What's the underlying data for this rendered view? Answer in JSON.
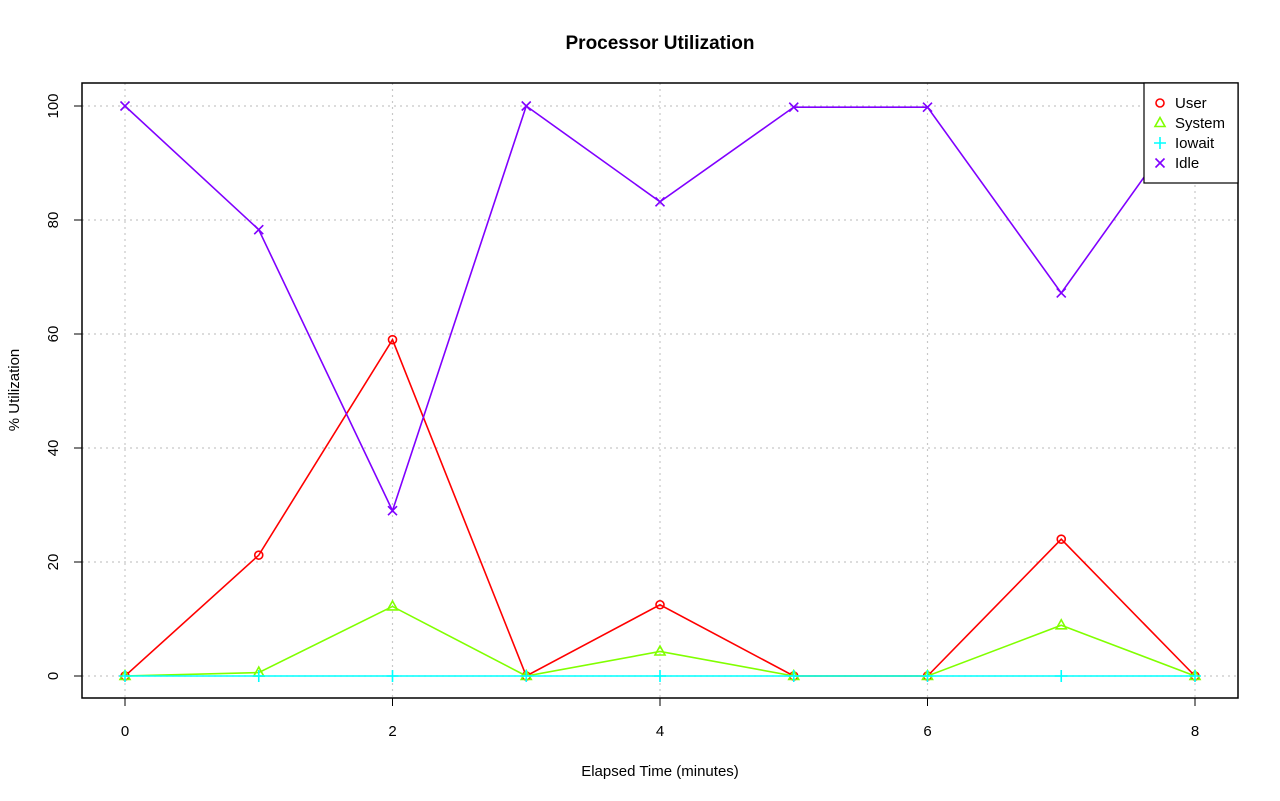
{
  "chart_data": {
    "type": "line",
    "title": "Processor Utilization",
    "xlabel": "Elapsed Time (minutes)",
    "ylabel": "% Utilization",
    "x": [
      0,
      1,
      2,
      3,
      4,
      5,
      6,
      7,
      8
    ],
    "xlim": [
      0,
      8
    ],
    "ylim": [
      0,
      100
    ],
    "x_ticks": [
      0,
      2,
      4,
      6,
      8
    ],
    "y_ticks": [
      0,
      20,
      40,
      60,
      80,
      100
    ],
    "grid": true,
    "legend_position": "top-right",
    "series": [
      {
        "name": "User",
        "color": "#ff0000",
        "marker": "circle",
        "values": [
          0,
          21.2,
          59,
          0,
          12.5,
          0,
          0,
          24,
          0
        ]
      },
      {
        "name": "System",
        "color": "#80ff00",
        "marker": "triangle",
        "values": [
          0,
          0.6,
          12.2,
          0,
          4.3,
          0,
          0,
          8.9,
          0
        ]
      },
      {
        "name": "Iowait",
        "color": "#00ffff",
        "marker": "plus",
        "values": [
          0,
          0,
          0,
          0,
          0,
          0,
          0,
          0,
          0
        ]
      },
      {
        "name": "Idle",
        "color": "#8000ff",
        "marker": "cross",
        "values": [
          100,
          78.3,
          29,
          100,
          83.2,
          99.8,
          99.8,
          67.2,
          100
        ]
      }
    ]
  }
}
